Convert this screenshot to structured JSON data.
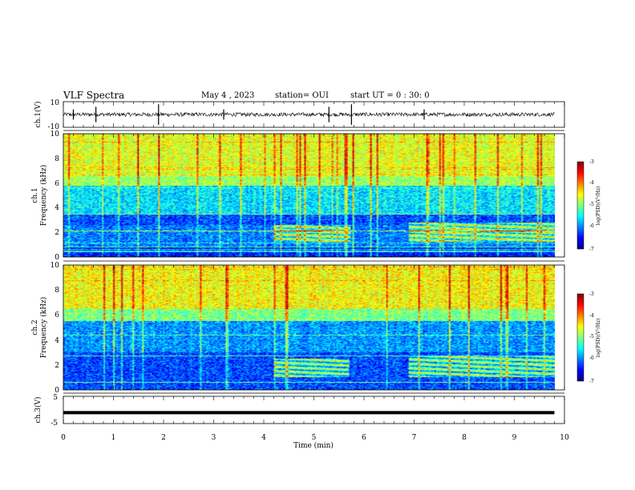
{
  "header": {
    "title": "VLF Spectra",
    "date": "May 4 , 2023",
    "station": "station= OUI",
    "start": "start  UT =   0 : 30: 0"
  },
  "colors": {
    "jet": [
      "#00007f",
      "#0000ff",
      "#007fff",
      "#00ffff",
      "#7fff7f",
      "#ffff00",
      "#ff7f00",
      "#ff0000",
      "#7f0000"
    ],
    "axis": "#000000",
    "trace": "#000000"
  },
  "chart_data": [
    {
      "id": "ch1-waveform",
      "type": "line",
      "ylabel": "ch.1(V)",
      "ylim": [
        -10,
        10
      ],
      "yticks": [
        "10",
        "-10"
      ],
      "baseline": 0,
      "amplitude_typical": 1.5,
      "spikes_at_min": [
        0.2,
        0.65,
        1.9,
        3.2,
        5.3,
        5.75,
        7.2
      ]
    },
    {
      "id": "ch1-spectrogram",
      "type": "heatmap",
      "ylabel_line1": "ch.1",
      "ylabel_line2": "Frequency (kHz)",
      "ylim": [
        0,
        10
      ],
      "yticks": [
        "0",
        "2",
        "4",
        "6",
        "8",
        "10"
      ],
      "xlim": [
        0,
        9.8
      ],
      "colorbar": {
        "label": "log(PSD)(V²/Hz)",
        "range": [
          -7,
          -3
        ],
        "ticks": [
          "-3",
          "-4",
          "-5",
          "-6",
          "-7"
        ]
      },
      "bands_kHz": [
        {
          "lo": 0,
          "hi": 0.8,
          "level": -6.4
        },
        {
          "lo": 0.8,
          "hi": 2.6,
          "level": -6.0
        },
        {
          "lo": 2.6,
          "hi": 3.5,
          "level": -6.2
        },
        {
          "lo": 3.5,
          "hi": 5.8,
          "level": -5.6
        },
        {
          "lo": 5.8,
          "hi": 6.6,
          "level": -4.9
        },
        {
          "lo": 6.6,
          "hi": 10,
          "level": -4.6
        }
      ],
      "segment_events_min": [
        {
          "start": 4.2,
          "end": 5.75,
          "f_lo": 1.2,
          "f_hi": 2.6
        },
        {
          "start": 6.9,
          "end": 9.8,
          "f_lo": 1.2,
          "f_hi": 2.8
        }
      ]
    },
    {
      "id": "ch2-spectrogram",
      "type": "heatmap",
      "ylabel_line1": "ch.2",
      "ylabel_line2": "Frequency (kHz)",
      "ylim": [
        0,
        10
      ],
      "yticks": [
        "0",
        "2",
        "4",
        "6",
        "8",
        "10"
      ],
      "xlim": [
        0,
        9.8
      ],
      "colorbar": {
        "label": "log(PSD)(V²/Hz)",
        "range": [
          -7,
          -3
        ],
        "ticks": [
          "-3",
          "-4",
          "-5",
          "-6",
          "-7"
        ]
      },
      "bands_kHz": [
        {
          "lo": 0,
          "hi": 1.0,
          "level": -6.2
        },
        {
          "lo": 1.0,
          "hi": 3.0,
          "level": -6.2
        },
        {
          "lo": 3.0,
          "hi": 5.5,
          "level": -5.9
        },
        {
          "lo": 5.5,
          "hi": 6.5,
          "level": -5.0
        },
        {
          "lo": 6.5,
          "hi": 10,
          "level": -4.5
        }
      ],
      "segment_events_min": [
        {
          "start": 4.2,
          "end": 5.7,
          "f_lo": 1.0,
          "f_hi": 2.5
        },
        {
          "start": 6.9,
          "end": 9.8,
          "f_lo": 1.0,
          "f_hi": 2.7
        }
      ]
    },
    {
      "id": "ch3-waveform",
      "type": "line",
      "ylabel": "ch.3(V)",
      "ylim": [
        -5,
        5
      ],
      "yticks": [
        "5",
        "-5"
      ],
      "value": -1
    }
  ],
  "xaxis": {
    "label": "Time  (min)",
    "range": [
      0,
      10
    ],
    "ticks": [
      "0",
      "1",
      "2",
      "3",
      "4",
      "5",
      "6",
      "7",
      "8",
      "9",
      "10"
    ]
  }
}
